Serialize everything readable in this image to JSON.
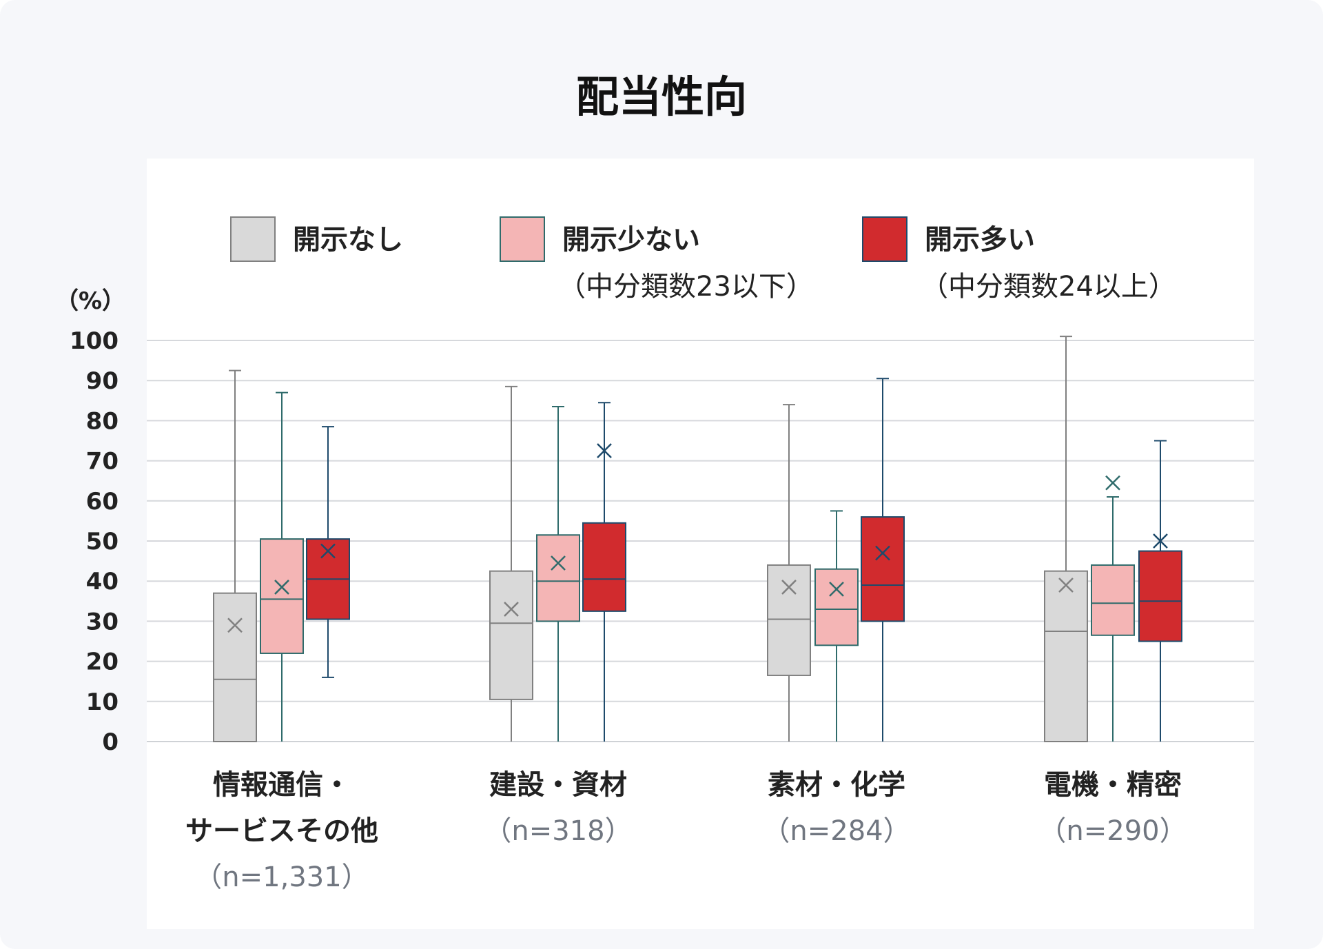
{
  "chart_data": {
    "type": "boxplot",
    "title": "配当性向",
    "ylabel": "（%）",
    "ylim": [
      0,
      100
    ],
    "yticks": [
      0,
      10,
      20,
      30,
      40,
      50,
      60,
      70,
      80,
      90,
      100
    ],
    "grid": true,
    "legend_position": "top",
    "colors": {
      "none_fill": "#d9d9d9",
      "none_stroke": "#808080",
      "few_fill": "#f4b5b5",
      "few_stroke": "#2f6b6b",
      "many_fill": "#d12b2e",
      "many_stroke": "#1e4a6b"
    },
    "legend": [
      {
        "name": "開示なし",
        "sub": ""
      },
      {
        "name": "開示少ない",
        "sub": "（中分類数23以下）"
      },
      {
        "name": "開示多い",
        "sub": "（中分類数24以上）"
      }
    ],
    "categories": [
      {
        "label_lines": [
          "情報通信・",
          "サービスその他"
        ],
        "n": "（n=1,331）"
      },
      {
        "label_lines": [
          "建設・資材"
        ],
        "n": "（n=318）"
      },
      {
        "label_lines": [
          "素材・化学"
        ],
        "n": "（n=284）"
      },
      {
        "label_lines": [
          "電機・精密"
        ],
        "n": "（n=290）"
      }
    ],
    "series": [
      {
        "name": "開示なし",
        "boxes": [
          {
            "min": 0,
            "q1": 0,
            "median": 15.5,
            "q3": 37,
            "max": 92.5,
            "mean": 29
          },
          {
            "min": 0,
            "q1": 10.5,
            "median": 29.5,
            "q3": 42.5,
            "max": 88.5,
            "mean": 33
          },
          {
            "min": 0,
            "q1": 16.5,
            "median": 30.5,
            "q3": 44,
            "max": 84,
            "mean": 38.5
          },
          {
            "min": 0,
            "q1": 0,
            "median": 27.5,
            "q3": 42.5,
            "max": 101,
            "mean": 39
          }
        ]
      },
      {
        "name": "開示少ない",
        "boxes": [
          {
            "min": 0,
            "q1": 22,
            "median": 35.5,
            "q3": 50.5,
            "max": 87,
            "mean": 38.5
          },
          {
            "min": 0,
            "q1": 30,
            "median": 40,
            "q3": 51.5,
            "max": 83.5,
            "mean": 44.5
          },
          {
            "min": 0,
            "q1": 24,
            "median": 33,
            "q3": 43,
            "max": 57.5,
            "mean": 38
          },
          {
            "min": 0,
            "q1": 26.5,
            "median": 34.5,
            "q3": 44,
            "max": 61,
            "mean": 64.5
          }
        ]
      },
      {
        "name": "開示多い",
        "boxes": [
          {
            "min": 16,
            "q1": 30.5,
            "median": 40.5,
            "q3": 50.5,
            "max": 78.5,
            "mean": 47.5
          },
          {
            "min": 0,
            "q1": 32.5,
            "median": 40.5,
            "q3": 54.5,
            "max": 84.5,
            "mean": 72.5
          },
          {
            "min": 0,
            "q1": 30,
            "median": 39,
            "q3": 56,
            "max": 90.5,
            "mean": 47
          },
          {
            "min": 0,
            "q1": 25,
            "median": 35,
            "q3": 47.5,
            "max": 75,
            "mean": 50
          }
        ]
      }
    ]
  }
}
